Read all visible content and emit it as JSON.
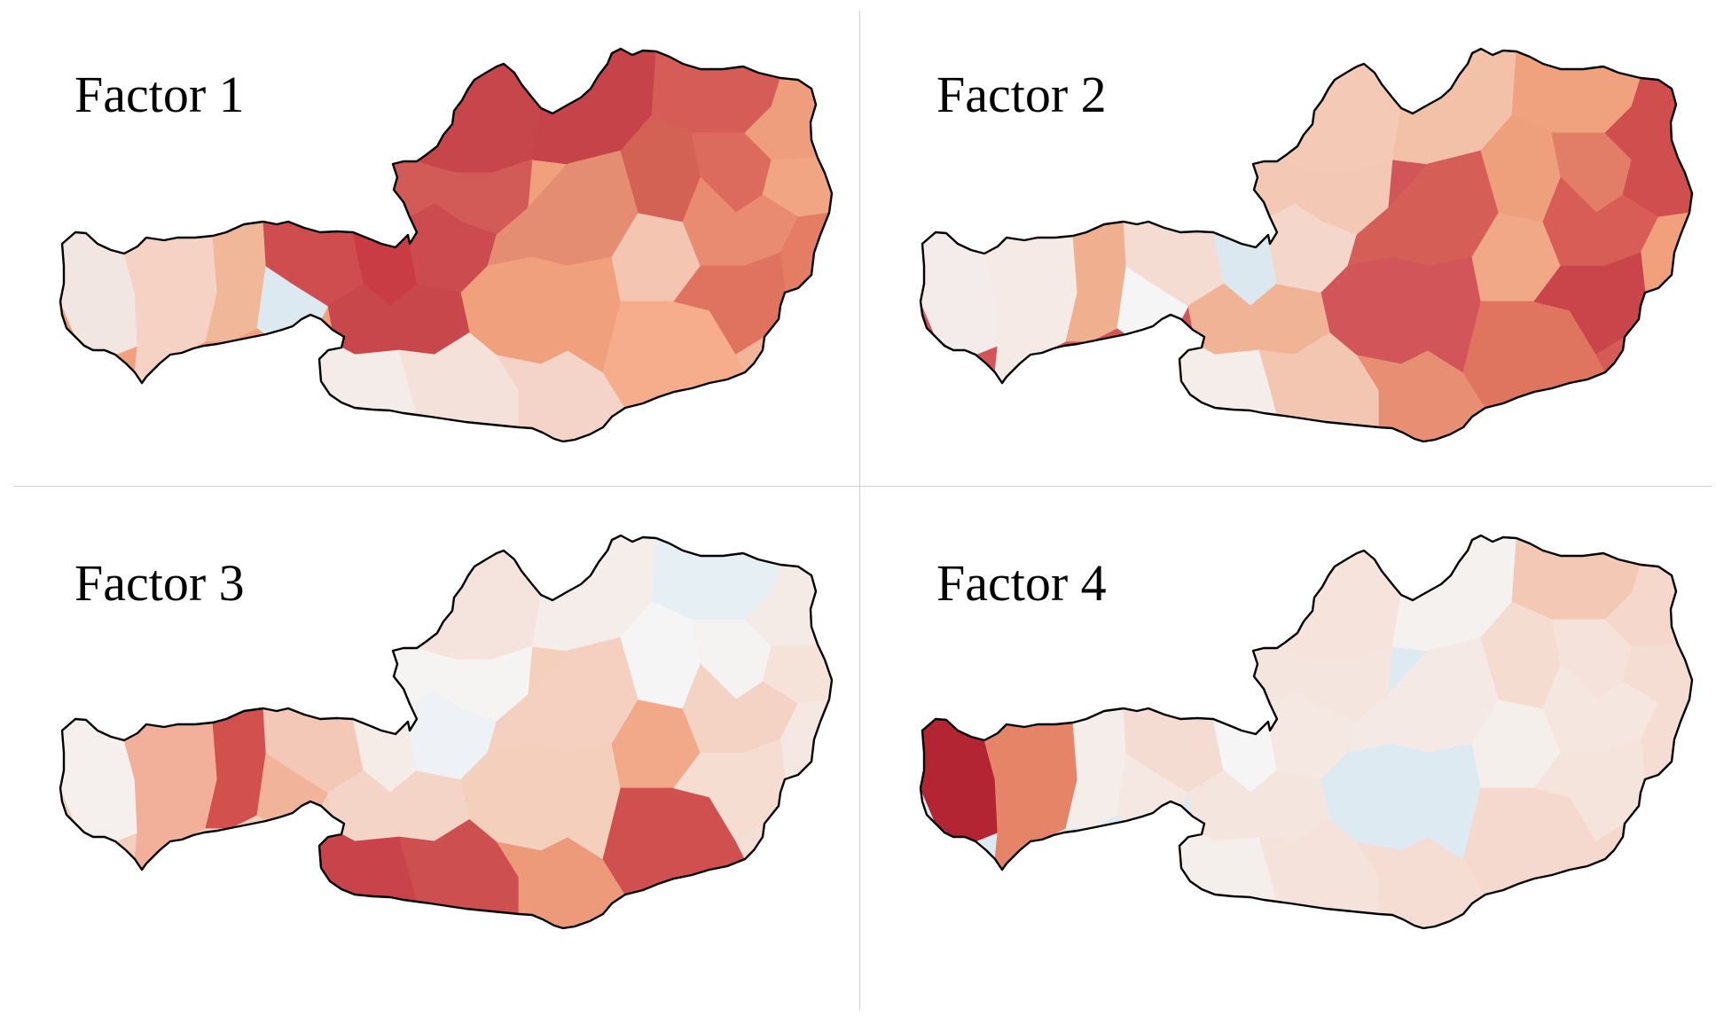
{
  "panels": [
    {
      "title": "Factor 1",
      "region_colors": {
        "vorarlberg": "#f2e6e3",
        "tirol_west": "#f5d2c4",
        "tirol_east": "#f1b799",
        "osttirol": "#dce9f0",
        "salzburg_w": "#cf4d4f",
        "salzburg_c": "#c93c44",
        "salzburg_s": "#c8474b",
        "carinthia_w": "#f4ece9",
        "carinthia_c": "#f4e1da",
        "carinthia_e": "#f4d4c8",
        "ooe_west": "#c7464b",
        "ooe_north": "#c6434a",
        "ooe_c": "#d35b57",
        "ooe_s": "#cb4b4e",
        "styria_n": "#e48d73",
        "styria_c": "#f0a07d",
        "styria_s": "#f4c5b1",
        "styria_se": "#f5ad8c",
        "noe_west": "#d65d57",
        "noe_wv": "#d36255",
        "noe_mv": "#dc6b5d",
        "noe_north": "#ef9e7d",
        "noe_east": "#f1a583",
        "noe_south": "#e88b70",
        "vienna": "#e47d64",
        "bgld_n": "#e0735f",
        "bgld_s": "#f3b59a"
      }
    },
    {
      "title": "Factor 2",
      "region_colors": {
        "vorarlberg": "#f4ecea",
        "tirol_west": "#f5eae6",
        "tirol_east": "#f0b08f",
        "osttirol": "#f5f5f5",
        "salzburg_w": "#f4dcd2",
        "salzburg_c": "#dbe8f0",
        "salzburg_s": "#f0b395",
        "carinthia_w": "#f5ede9",
        "carinthia_c": "#f2c6b1",
        "carinthia_e": "#e88f73",
        "ooe_west": "#f4c9b6",
        "ooe_north": "#f3c0a8",
        "ooe_c": "#f3c8b5",
        "ooe_s": "#f4d6ca",
        "styria_n": "#d55e57",
        "styria_c": "#d2555a",
        "styria_s": "#f0a886",
        "styria_se": "#e0755f",
        "noe_west": "#f0a17d",
        "noe_wv": "#ee9f7b",
        "noe_mv": "#e27e67",
        "noe_north": "#d04f4e",
        "noe_east": "#d04e4d",
        "noe_south": "#d85d57",
        "vienna": "#f1a07b",
        "bgld_n": "#c9454a",
        "bgld_s": "#d55b57"
      }
    },
    {
      "title": "Factor 3",
      "region_colors": {
        "vorarlberg": "#f5f0ee",
        "tirol_west": "#f2b09a",
        "tirol_east": "#d2514f",
        "osttirol": "#f1b49a",
        "salzburg_w": "#f3c8b6",
        "salzburg_c": "#f5ebe7",
        "salzburg_s": "#f4d4c6",
        "carinthia_w": "#c9434a",
        "carinthia_c": "#cd4f4f",
        "carinthia_e": "#ec9a79",
        "ooe_west": "#f5e3de",
        "ooe_north": "#f5ede9",
        "ooe_c": "#f6f4f3",
        "ooe_s": "#eef2f6",
        "styria_n": "#f5d0c0",
        "styria_c": "#f4cfbc",
        "styria_s": "#f1a98a",
        "styria_se": "#cf504f",
        "noe_west": "#e6eff3",
        "noe_wv": "#f5f5f5",
        "noe_mv": "#f4f3f2",
        "noe_north": "#f5ebe6",
        "noe_east": "#f5e3da",
        "noe_south": "#f4d3c4",
        "vienna": "#f5e7e2",
        "bgld_n": "#f5ddd2",
        "bgld_s": "#f5e0d6"
      }
    },
    {
      "title": "Factor 4",
      "region_colors": {
        "vorarlberg": "#b42533",
        "tirol_west": "#e58467",
        "tirol_east": "#f5ede9",
        "osttirol": "#f5e8e2",
        "salzburg_w": "#f5dcd2",
        "salzburg_c": "#f5f5f5",
        "salzburg_s": "#f5e5df",
        "carinthia_w": "#f5efec",
        "carinthia_c": "#f5e2da",
        "carinthia_e": "#f5ddd3",
        "ooe_west": "#f5e3dc",
        "ooe_north": "#f5f1ef",
        "ooe_c": "#f5e5df",
        "ooe_s": "#f5e8e3",
        "styria_n": "#f5e9e5",
        "styria_c": "#deeaf1",
        "styria_s": "#f5efec",
        "styria_se": "#f5d9ce",
        "noe_west": "#f3c8b5",
        "noe_wv": "#f5dcd1",
        "noe_mv": "#f5e2db",
        "noe_north": "#f5d7cb",
        "noe_east": "#f5ddd3",
        "noe_south": "#f5e6e0",
        "vienna": "#f5ddd3",
        "bgld_n": "#f5e4dc",
        "bgld_s": "#f5d8cc"
      }
    }
  ]
}
